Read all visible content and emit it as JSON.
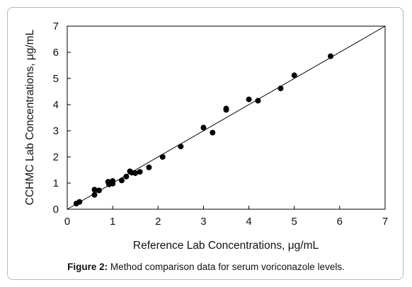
{
  "caption": {
    "label": "Figure 2:",
    "text": "Method comparison data for serum voriconazole levels."
  },
  "chart_data": {
    "type": "scatter",
    "xlabel": "Reference Lab Concentrations, μg/mL",
    "ylabel": "CCHMC Lab Concentrations, μg/mL",
    "xlim": [
      0,
      7
    ],
    "ylim": [
      0,
      7
    ],
    "xticks": [
      "0",
      "1",
      "2",
      "3",
      "4",
      "5",
      "6",
      "7"
    ],
    "yticks": [
      "0",
      "1",
      "2",
      "3",
      "4",
      "5",
      "6",
      "7"
    ],
    "grid": false,
    "legend": "none",
    "reference_line": {
      "x": [
        0,
        7
      ],
      "y": [
        0,
        7
      ]
    },
    "colors": {
      "points": "#000000",
      "line": "#000000"
    },
    "series": [
      {
        "points": [
          [
            0.2,
            0.22
          ],
          [
            0.27,
            0.28
          ],
          [
            0.6,
            0.55
          ],
          [
            0.6,
            0.75
          ],
          [
            0.7,
            0.72
          ],
          [
            0.9,
            1.05
          ],
          [
            0.92,
            0.95
          ],
          [
            1.0,
            1.08
          ],
          [
            1.0,
            0.98
          ],
          [
            1.2,
            1.1
          ],
          [
            1.3,
            1.25
          ],
          [
            1.38,
            1.45
          ],
          [
            1.42,
            1.4
          ],
          [
            1.5,
            1.38
          ],
          [
            1.6,
            1.43
          ],
          [
            1.8,
            1.6
          ],
          [
            2.1,
            2.0
          ],
          [
            2.5,
            2.4
          ],
          [
            3.0,
            3.12
          ],
          [
            3.2,
            2.93
          ],
          [
            3.5,
            3.8
          ],
          [
            3.5,
            3.85
          ],
          [
            4.0,
            4.2
          ],
          [
            4.2,
            4.15
          ],
          [
            4.7,
            4.62
          ],
          [
            5.0,
            5.12
          ],
          [
            5.8,
            5.85
          ]
        ]
      }
    ]
  }
}
